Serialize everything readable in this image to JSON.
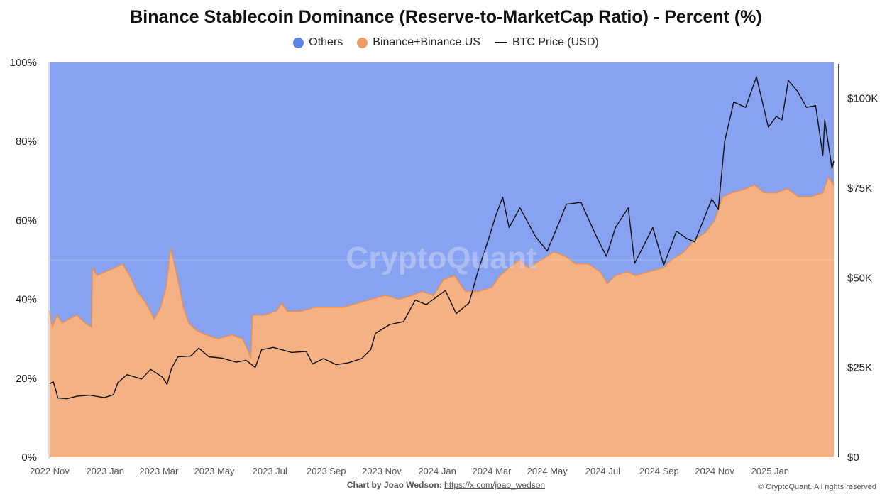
{
  "title": "Binance Stablecoin Dominance (Reserve-to-MarketCap Ratio) - Percent (%)",
  "legend": {
    "others": "Others",
    "binance": "Binance+Binance.US",
    "btc": "BTC Price (USD)"
  },
  "colors": {
    "others": "#86a2f0",
    "others_dot": "#5b83e8",
    "binance": "#f4b183",
    "binance_line": "#ef8e4e",
    "binance_dot": "#f19a5e",
    "btc": "#111111"
  },
  "watermark": "CryptoQuant",
  "footer": {
    "by_label": "Chart by Joao Wedson:",
    "link": "https://x.com/joao_wedson",
    "copyright": "© CryptoQuant. All rights reserved"
  },
  "chart_data": {
    "type": "area",
    "title": "Binance Stablecoin Dominance (Reserve-to-MarketCap Ratio) - Percent (%)",
    "x_tick_labels": [
      "2022 Nov",
      "2023 Jan",
      "2023 Mar",
      "2023 May",
      "2023 Jul",
      "2023 Sep",
      "2023 Nov",
      "2024 Jan",
      "2024 Mar",
      "2024 May",
      "2024 Jul",
      "2024 Sep",
      "2024 Nov",
      "2025 Jan"
    ],
    "x_range": [
      "2022-11-01",
      "2025-03-12"
    ],
    "y_left": {
      "range": [
        0,
        100
      ],
      "tick_labels": [
        "0%",
        "20%",
        "40%",
        "60%",
        "80%",
        "100%"
      ]
    },
    "y_right": {
      "range": [
        0,
        110000
      ],
      "tick_labels": [
        "$0",
        "$25K",
        "$50K",
        "$75K",
        "$100K"
      ]
    },
    "series": [
      {
        "name": "Binance+Binance.US",
        "axis": "left",
        "points": [
          [
            "2022-11-01",
            37
          ],
          [
            "2022-11-04",
            33
          ],
          [
            "2022-11-09",
            36
          ],
          [
            "2022-11-15",
            34
          ],
          [
            "2022-11-22",
            35
          ],
          [
            "2022-12-01",
            36
          ],
          [
            "2022-12-10",
            34
          ],
          [
            "2022-12-17",
            33
          ],
          [
            "2022-12-18",
            48
          ],
          [
            "2022-12-23",
            46
          ],
          [
            "2023-01-01",
            47
          ],
          [
            "2023-01-12",
            48
          ],
          [
            "2023-01-20",
            49
          ],
          [
            "2023-01-28",
            46
          ],
          [
            "2023-02-05",
            42
          ],
          [
            "2023-02-15",
            39
          ],
          [
            "2023-02-24",
            35
          ],
          [
            "2023-03-03",
            38
          ],
          [
            "2023-03-09",
            43
          ],
          [
            "2023-03-14",
            53
          ],
          [
            "2023-03-22",
            45
          ],
          [
            "2023-03-28",
            38
          ],
          [
            "2023-04-03",
            34
          ],
          [
            "2023-04-12",
            32
          ],
          [
            "2023-04-22",
            31
          ],
          [
            "2023-05-05",
            30
          ],
          [
            "2023-05-20",
            31
          ],
          [
            "2023-06-01",
            30
          ],
          [
            "2023-06-07",
            27
          ],
          [
            "2023-06-10",
            25
          ],
          [
            "2023-06-12",
            36
          ],
          [
            "2023-06-25",
            36
          ],
          [
            "2023-07-08",
            37
          ],
          [
            "2023-07-14",
            39
          ],
          [
            "2023-07-20",
            37
          ],
          [
            "2023-08-05",
            37
          ],
          [
            "2023-08-20",
            38
          ],
          [
            "2023-09-05",
            38
          ],
          [
            "2023-09-20",
            38
          ],
          [
            "2023-10-05",
            39
          ],
          [
            "2023-10-20",
            40
          ],
          [
            "2023-11-05",
            41
          ],
          [
            "2023-11-20",
            40
          ],
          [
            "2023-12-05",
            41
          ],
          [
            "2023-12-15",
            42
          ],
          [
            "2023-12-28",
            41
          ],
          [
            "2024-01-08",
            45
          ],
          [
            "2024-01-20",
            46
          ],
          [
            "2024-02-01",
            42
          ],
          [
            "2024-02-15",
            42
          ],
          [
            "2024-03-01",
            43
          ],
          [
            "2024-03-10",
            46
          ],
          [
            "2024-03-20",
            48
          ],
          [
            "2024-04-01",
            50
          ],
          [
            "2024-04-10",
            48
          ],
          [
            "2024-04-25",
            50
          ],
          [
            "2024-05-08",
            52
          ],
          [
            "2024-05-20",
            51
          ],
          [
            "2024-06-01",
            49
          ],
          [
            "2024-06-15",
            49
          ],
          [
            "2024-06-28",
            47
          ],
          [
            "2024-07-06",
            44
          ],
          [
            "2024-07-15",
            46
          ],
          [
            "2024-07-28",
            47
          ],
          [
            "2024-08-06",
            46
          ],
          [
            "2024-08-20",
            47
          ],
          [
            "2024-09-06",
            48
          ],
          [
            "2024-09-15",
            50
          ],
          [
            "2024-09-28",
            52
          ],
          [
            "2024-10-10",
            55
          ],
          [
            "2024-10-22",
            57
          ],
          [
            "2024-11-01",
            60
          ],
          [
            "2024-11-10",
            66
          ],
          [
            "2024-11-20",
            67
          ],
          [
            "2024-12-05",
            68
          ],
          [
            "2024-12-15",
            69
          ],
          [
            "2024-12-25",
            67
          ],
          [
            "2025-01-08",
            67
          ],
          [
            "2025-01-20",
            68
          ],
          [
            "2025-02-01",
            66
          ],
          [
            "2025-02-15",
            66
          ],
          [
            "2025-02-28",
            67
          ],
          [
            "2025-03-06",
            71
          ],
          [
            "2025-03-12",
            69
          ]
        ]
      },
      {
        "name": "Others",
        "axis": "left",
        "note_values": "fills from Binance+Binance.US up to 100%",
        "points": []
      },
      {
        "name": "BTC Price (USD)",
        "axis": "right",
        "points": [
          [
            "2022-11-01",
            20500
          ],
          [
            "2022-11-05",
            21000
          ],
          [
            "2022-11-08",
            18500
          ],
          [
            "2022-11-10",
            16500
          ],
          [
            "2022-11-20",
            16300
          ],
          [
            "2022-12-01",
            17000
          ],
          [
            "2022-12-15",
            17300
          ],
          [
            "2022-12-31",
            16600
          ],
          [
            "2023-01-10",
            17400
          ],
          [
            "2023-01-15",
            20800
          ],
          [
            "2023-01-25",
            23000
          ],
          [
            "2023-02-10",
            21800
          ],
          [
            "2023-02-20",
            24500
          ],
          [
            "2023-03-05",
            22300
          ],
          [
            "2023-03-10",
            20300
          ],
          [
            "2023-03-15",
            24800
          ],
          [
            "2023-03-22",
            28000
          ],
          [
            "2023-04-05",
            28200
          ],
          [
            "2023-04-14",
            30400
          ],
          [
            "2023-04-25",
            28000
          ],
          [
            "2023-05-10",
            27600
          ],
          [
            "2023-05-25",
            26500
          ],
          [
            "2023-06-05",
            27000
          ],
          [
            "2023-06-15",
            25000
          ],
          [
            "2023-06-22",
            30000
          ],
          [
            "2023-07-05",
            30600
          ],
          [
            "2023-07-25",
            29200
          ],
          [
            "2023-08-10",
            29500
          ],
          [
            "2023-08-17",
            26000
          ],
          [
            "2023-08-29",
            27500
          ],
          [
            "2023-09-12",
            25800
          ],
          [
            "2023-09-25",
            26300
          ],
          [
            "2023-10-10",
            27500
          ],
          [
            "2023-10-20",
            30000
          ],
          [
            "2023-10-25",
            34500
          ],
          [
            "2023-11-10",
            37000
          ],
          [
            "2023-11-25",
            37800
          ],
          [
            "2023-12-08",
            43800
          ],
          [
            "2023-12-20",
            42500
          ],
          [
            "2024-01-10",
            46500
          ],
          [
            "2024-01-22",
            40000
          ],
          [
            "2024-02-05",
            43000
          ],
          [
            "2024-02-15",
            52000
          ],
          [
            "2024-02-28",
            62000
          ],
          [
            "2024-03-05",
            67000
          ],
          [
            "2024-03-13",
            72500
          ],
          [
            "2024-03-20",
            64000
          ],
          [
            "2024-04-01",
            69500
          ],
          [
            "2024-04-18",
            61500
          ],
          [
            "2024-05-01",
            57500
          ],
          [
            "2024-05-15",
            66000
          ],
          [
            "2024-05-22",
            70500
          ],
          [
            "2024-06-07",
            71000
          ],
          [
            "2024-06-25",
            61000
          ],
          [
            "2024-07-05",
            56000
          ],
          [
            "2024-07-15",
            64000
          ],
          [
            "2024-07-29",
            69500
          ],
          [
            "2024-08-05",
            54000
          ],
          [
            "2024-08-25",
            64000
          ],
          [
            "2024-09-06",
            53500
          ],
          [
            "2024-09-20",
            63000
          ],
          [
            "2024-10-01",
            61000
          ],
          [
            "2024-10-10",
            60000
          ],
          [
            "2024-10-29",
            72000
          ],
          [
            "2024-11-05",
            69000
          ],
          [
            "2024-11-12",
            88000
          ],
          [
            "2024-11-22",
            99000
          ],
          [
            "2024-12-05",
            97500
          ],
          [
            "2024-12-17",
            106000
          ],
          [
            "2024-12-30",
            92000
          ],
          [
            "2025-01-08",
            95000
          ],
          [
            "2025-01-14",
            94000
          ],
          [
            "2025-01-21",
            105000
          ],
          [
            "2025-01-31",
            102000
          ],
          [
            "2025-02-10",
            97500
          ],
          [
            "2025-02-20",
            98000
          ],
          [
            "2025-02-28",
            84000
          ],
          [
            "2025-03-02",
            94000
          ],
          [
            "2025-03-10",
            80500
          ],
          [
            "2025-03-12",
            82500
          ]
        ]
      }
    ],
    "legend_position": "top-center",
    "grid": true
  }
}
